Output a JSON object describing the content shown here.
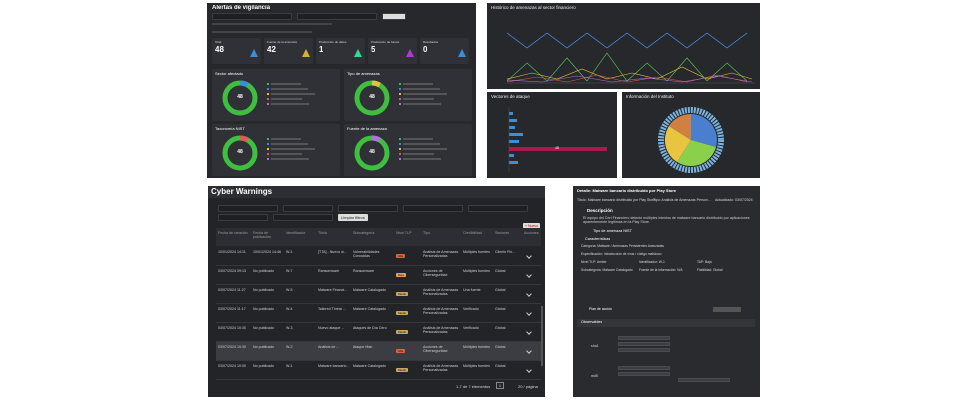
{
  "dashboard": {
    "title": "Alertas de vigilancia",
    "kpis": [
      {
        "label": "Total",
        "value": "48"
      },
      {
        "label": "Fuente de la amenaza",
        "value": "42"
      },
      {
        "label": "Producción de datos",
        "value": "1"
      },
      {
        "label": "Producción de banca",
        "value": "5"
      },
      {
        "label": "Resultados",
        "value": "0"
      }
    ],
    "cards": [
      {
        "title": "Sector afectado",
        "center": "48"
      },
      {
        "title": "Tipo de amenazas",
        "center": "48"
      },
      {
        "title": "Taxonomía NIST",
        "center": "48"
      },
      {
        "title": "Fuente de la amenaza",
        "center": "48"
      }
    ]
  },
  "history": {
    "title": "Histórico de amenazas al sector financiero"
  },
  "vectors": {
    "title": "Vectores de ataque",
    "bar_label": "48"
  },
  "network": {
    "title": "Información del Instituto"
  },
  "warnings": {
    "title": "Cyber Warnings",
    "clear_button": "Limpiar filtros",
    "new_button": "+ Nuevo",
    "columns": [
      "Fecha de creación",
      "Fecha de publicación",
      "Identificador",
      "Título",
      "Subcategoría",
      "Nivel TLP",
      "Tipo",
      "Credibilidad",
      "Sectores",
      "Acciones"
    ],
    "rows": [
      [
        "10/01/2024 14:11",
        "10/01/2024 14:46",
        "W-1",
        "[TTA] - Nuevo w...",
        "Vulnerabilidades Conocidas",
        "Alta",
        "Análisis de Amenazas Personalizadas",
        "Múltiples fuentes",
        "Cliente Fin..."
      ],
      [
        "03/07/2024 09:13",
        "No publicado",
        "W-7",
        "Ransomware",
        "Ransomware",
        "Baja",
        "Acciones de Ciberseguridad",
        "Múltiples fuentes",
        "Global"
      ],
      [
        "03/07/2024 11:27",
        "No publicado",
        "W-5",
        "Malware Financi...",
        "Malware Catalogado",
        "Medio",
        "Análisis de Amenazas Personalizadas",
        "Una fuente",
        "Global"
      ],
      [
        "03/07/2024 11:17",
        "No publicado",
        "W-4",
        "Tailored Threat ...",
        "Malware Catalogado",
        "Medio",
        "Análisis de Amenazas Personalizadas",
        "Verificado",
        "Global"
      ],
      [
        "03/07/2024 10:30",
        "No publicado",
        "W-3",
        "Nuevo ataque ...",
        "Ataques de Día Cero",
        "Medio",
        "Análisis de Amenazas Personalizadas",
        "Verificado",
        "Global"
      ],
      [
        "03/07/2024 10:30",
        "No publicado",
        "W-2",
        "Análisis de ...",
        "Ataque Man",
        "Alta",
        "Acciones de Ciberseguridad",
        "Múltiples fuentes",
        "Global"
      ],
      [
        "03/07/2024 10:00",
        "No publicado",
        "W-1",
        "Malware bancario...",
        "Malware Catalogado",
        "Medio",
        "Análisis de Amenazas Personalizadas",
        "Múltiples fuentes",
        "Global"
      ]
    ],
    "footer": "1-7 de 7 elementos",
    "page": "1",
    "per_page": "20 / página"
  },
  "detail": {
    "header": "Detalle: Malware bancario distribuido por Play Store",
    "title": "Título: Malware bancario distribuido por Play Store",
    "type": "Tipo: Análisis de Amenazas Personalizadas",
    "updated": "Actualizado: 03/07/2024",
    "description_title": "Descripción",
    "description": "El equipo del Cert Financiero detectó múltiples intentos de malware bancario distribuido por aplicaciones aparentemente legítimas en la Play Store.",
    "nist_title": "Tipo de amenaza NIST",
    "features_title": "Características",
    "fields": [
      "Categoría: Malware / Amenazas Persistentes Avanzadas",
      "Especificación: Introducción de virus / código malicioso",
      "Nivel TLP: Amber",
      "Identificador: W-1",
      "TAP: Baja",
      "Subcategoría: Malware Catalogado",
      "Fuente de la información: N/A",
      "Fiabilidad: Global"
    ],
    "plan_title": "Plan de acción",
    "observables_title": "Observables",
    "obs_rows": [
      "sha1",
      "md5"
    ]
  }
}
